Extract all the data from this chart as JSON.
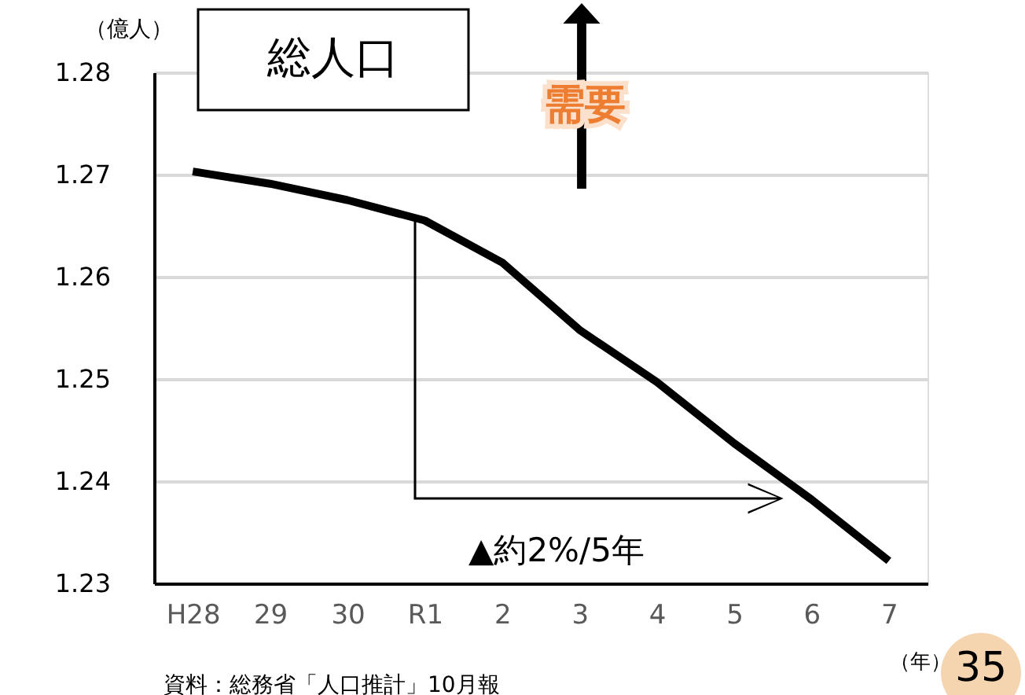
{
  "chart_data": {
    "type": "line",
    "title": "総人口",
    "ylabel": "（億人）",
    "xlabel": "（年）",
    "categories": [
      "H28",
      "29",
      "30",
      "R1",
      "2",
      "3",
      "4",
      "5",
      "6",
      "7"
    ],
    "series": [
      {
        "color": "#000000",
        "values": [
          1.2703,
          1.2691,
          1.2675,
          1.2655,
          1.2614,
          1.2548,
          1.2497,
          1.2437,
          1.2382,
          1.2322
        ]
      }
    ],
    "ylim": [
      1.23,
      1.28
    ],
    "yticks": [
      1.23,
      1.24,
      1.25,
      1.26,
      1.27,
      1.28
    ],
    "grid": "y",
    "marker": "none",
    "line_style": "solid",
    "annotations": [
      "需要",
      "▲約2%/5年",
      "資料：総務省「人口推計」10月報",
      "35"
    ]
  }
}
